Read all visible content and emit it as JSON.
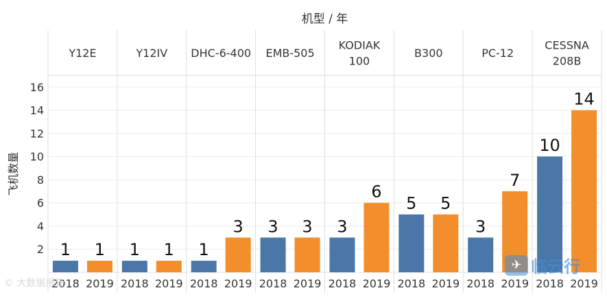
{
  "colors": {
    "2018": "#4a77a7",
    "2019": "#f28e2b"
  },
  "watermarks": {
    "left": "© 大数据报告",
    "right_text": "临云行",
    "right_icon": "plane-icon"
  },
  "chart_data": {
    "type": "bar",
    "title": "机型 / 年",
    "ylabel": "飞机数量",
    "xlabel": "",
    "ylim": [
      0,
      17
    ],
    "yticks": [
      2,
      4,
      6,
      8,
      10,
      12,
      14,
      16
    ],
    "grid": true,
    "groups": [
      {
        "name": [
          "Y12E"
        ],
        "values": [
          {
            "year": "2018",
            "value": 1
          },
          {
            "year": "2019",
            "value": 1
          }
        ]
      },
      {
        "name": [
          "Y12IV"
        ],
        "values": [
          {
            "year": "2018",
            "value": 1
          },
          {
            "year": "2019",
            "value": 1
          }
        ]
      },
      {
        "name": [
          "DHC-6-400"
        ],
        "values": [
          {
            "year": "2018",
            "value": 1
          },
          {
            "year": "2019",
            "value": 3
          }
        ]
      },
      {
        "name": [
          "EMB-505"
        ],
        "values": [
          {
            "year": "2018",
            "value": 3
          },
          {
            "year": "2019",
            "value": 3
          }
        ]
      },
      {
        "name": [
          "KODIAK",
          "100"
        ],
        "values": [
          {
            "year": "2018",
            "value": 3
          },
          {
            "year": "2019",
            "value": 6
          }
        ]
      },
      {
        "name": [
          "B300"
        ],
        "values": [
          {
            "year": "2018",
            "value": 5
          },
          {
            "year": "2019",
            "value": 5
          }
        ]
      },
      {
        "name": [
          "PC-12"
        ],
        "values": [
          {
            "year": "2018",
            "value": 3
          },
          {
            "year": "2019",
            "value": 7
          }
        ]
      },
      {
        "name": [
          "CESSNA",
          "208B"
        ],
        "values": [
          {
            "year": "2018",
            "value": 10
          },
          {
            "year": "2019",
            "value": 14
          }
        ]
      }
    ]
  }
}
